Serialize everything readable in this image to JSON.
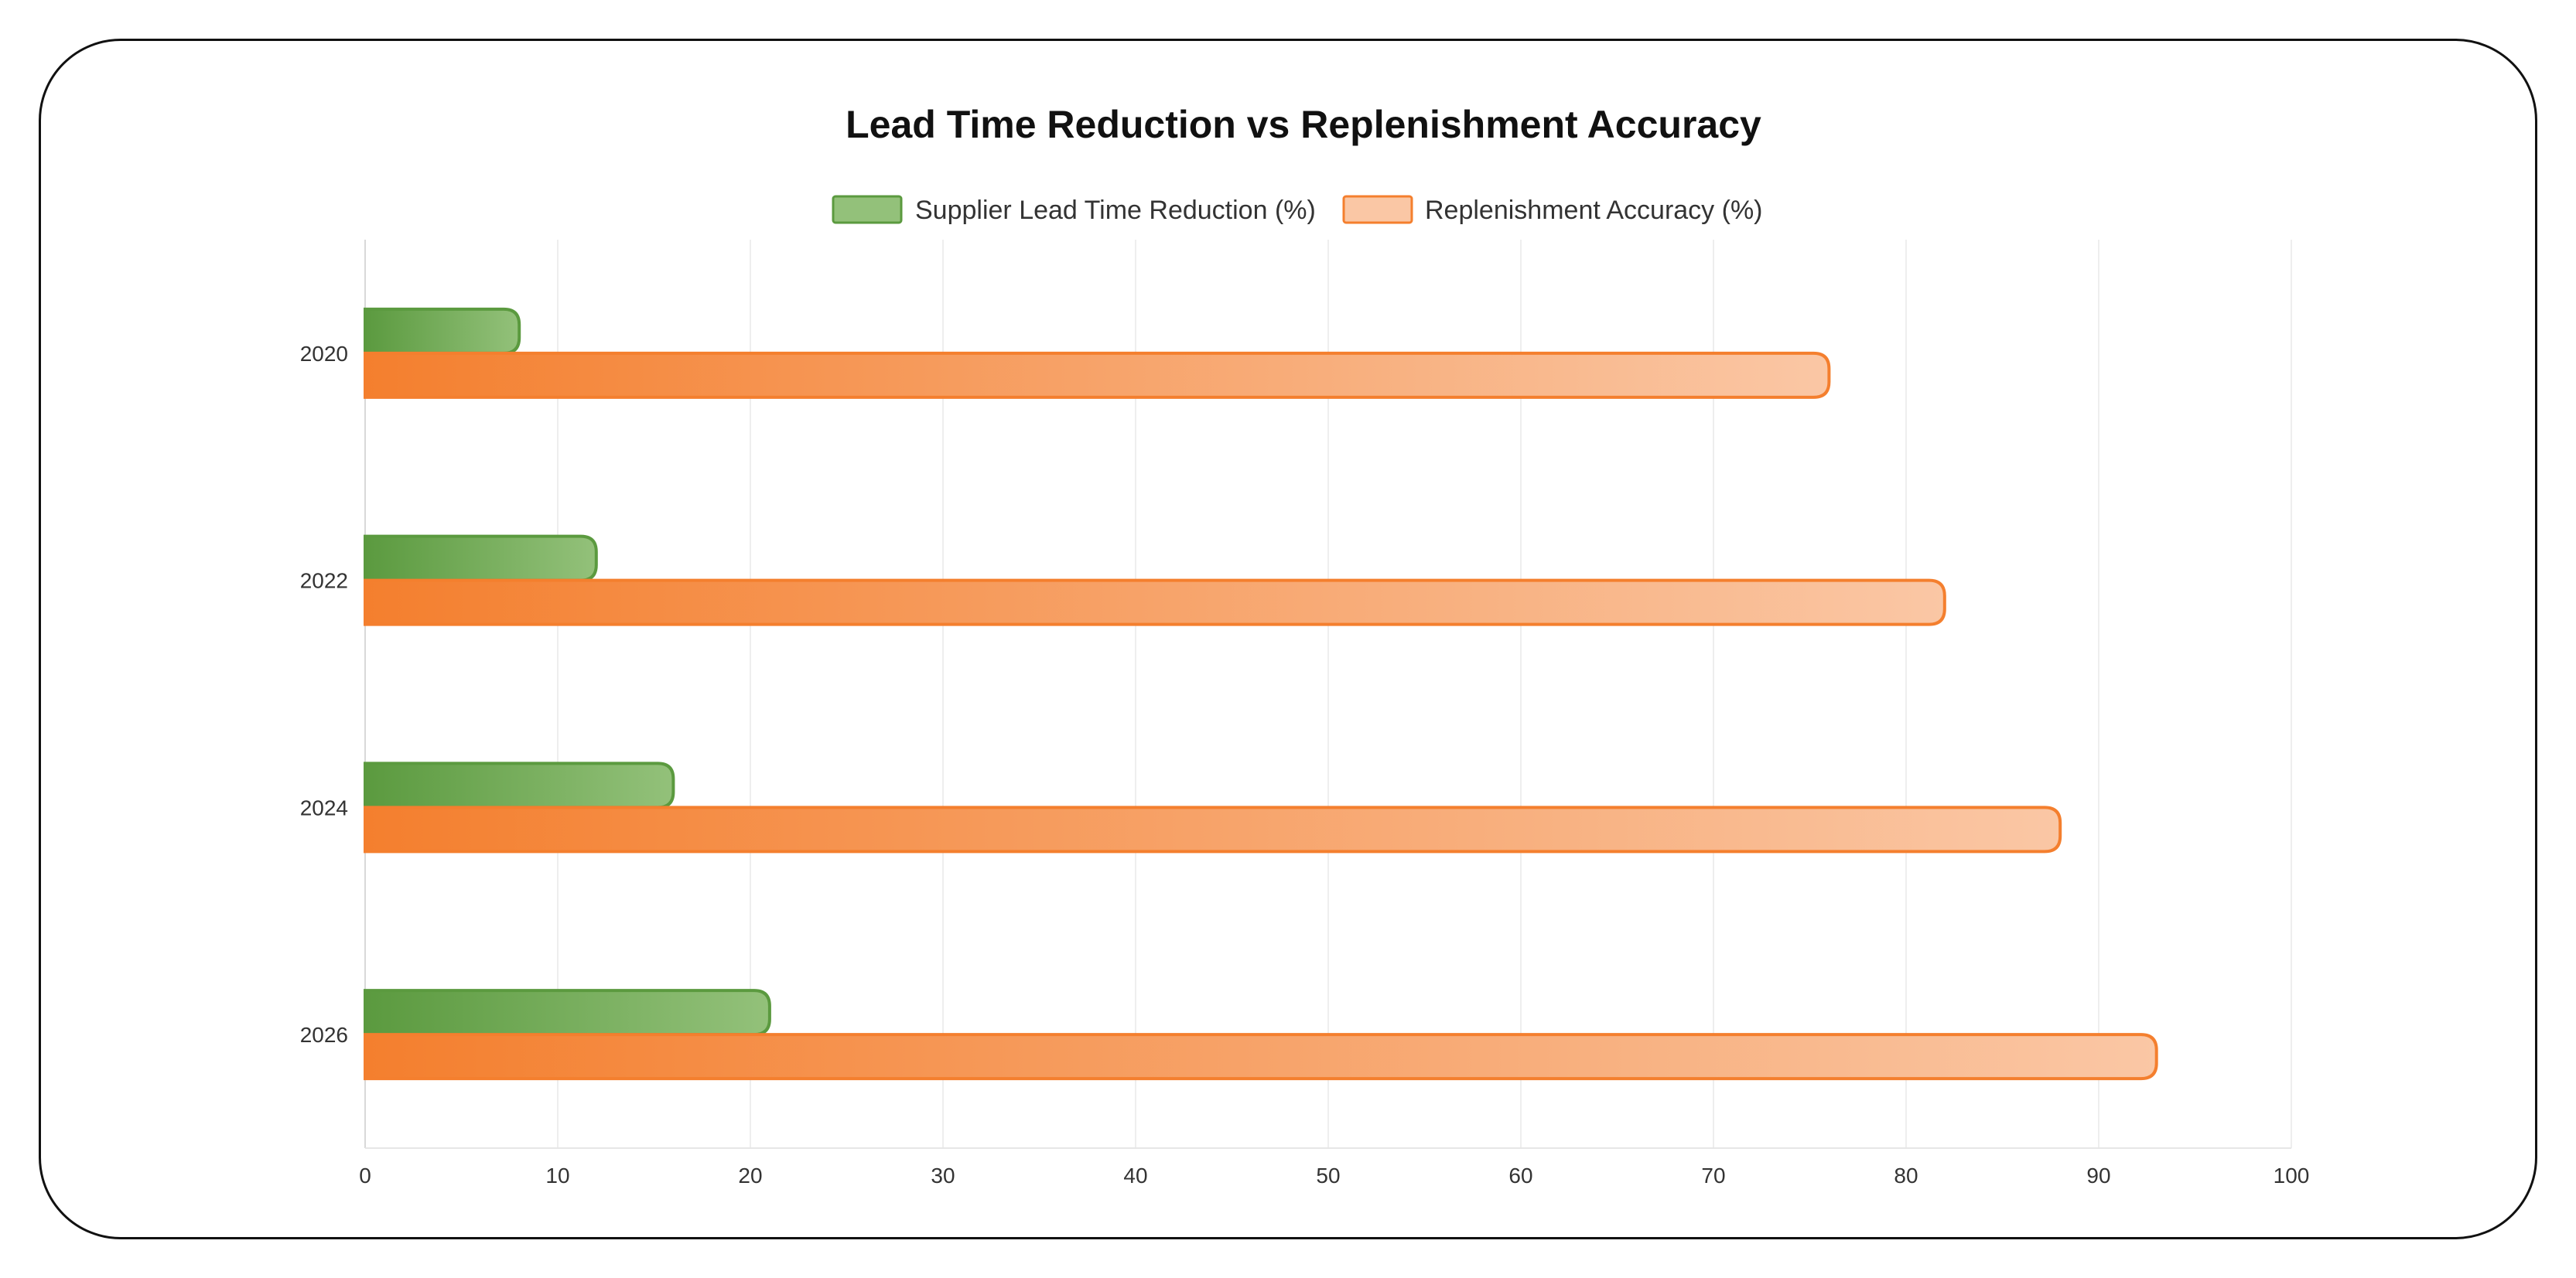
{
  "chart_data": {
    "type": "bar",
    "orientation": "horizontal",
    "title": "Lead Time Reduction vs Replenishment Accuracy",
    "categories": [
      "2020",
      "2022",
      "2024",
      "2026"
    ],
    "series": [
      {
        "name": "Supplier Lead Time Reduction (%)",
        "values": [
          8,
          12,
          16,
          21
        ],
        "color": "#5b9a3f",
        "border_color": "#5b9a3f",
        "fill_light": "#93c17a"
      },
      {
        "name": "Replenishment Accuracy (%)",
        "values": [
          76,
          82,
          88,
          93
        ],
        "color": "#f47f2e",
        "border_color": "#f47f2e",
        "fill_light": "#fac7a5"
      }
    ],
    "xlim": [
      0,
      100
    ],
    "xticks": [
      "0",
      "10",
      "20",
      "30",
      "40",
      "50",
      "60",
      "70",
      "80",
      "90",
      "100"
    ],
    "xlabel": "",
    "ylabel": "",
    "grid": true,
    "legend_position": "top"
  }
}
